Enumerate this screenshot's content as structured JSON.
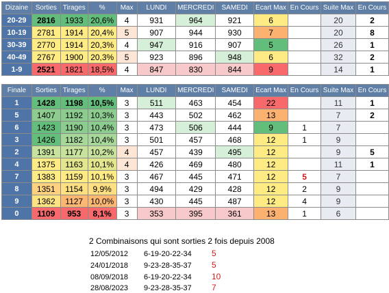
{
  "table1": {
    "headers": [
      "Dizaine",
      "Sorties",
      "Tirages",
      "%",
      "Max",
      "LUNDI",
      "MERCREDI",
      "SAMEDI",
      "Ecart Max",
      "En Cours",
      "Suite Max",
      "En Cours"
    ],
    "rows": [
      {
        "label": "20-29",
        "sorties": "2816",
        "tirages": "1933",
        "pct": "20,6%",
        "max": "4",
        "lundi": "931",
        "mercredi": "964",
        "samedi": "921",
        "ecart": "6",
        "encours": "",
        "suite": "20",
        "encours2": "2"
      },
      {
        "label": "10-19",
        "sorties": "2781",
        "tirages": "1914",
        "pct": "20,4%",
        "max": "5",
        "lundi": "907",
        "mercredi": "944",
        "samedi": "930",
        "ecart": "7",
        "encours": "",
        "suite": "20",
        "encours2": "8"
      },
      {
        "label": "30-39",
        "sorties": "2770",
        "tirages": "1914",
        "pct": "20,3%",
        "max": "4",
        "lundi": "947",
        "mercredi": "916",
        "samedi": "907",
        "ecart": "5",
        "encours": "",
        "suite": "26",
        "encours2": "1"
      },
      {
        "label": "40-49",
        "sorties": "2767",
        "tirages": "1900",
        "pct": "20,3%",
        "max": "5",
        "lundi": "923",
        "mercredi": "896",
        "samedi": "948",
        "ecart": "6",
        "encours": "",
        "suite": "32",
        "encours2": "2"
      },
      {
        "label": "1-9",
        "sorties": "2521",
        "tirages": "1821",
        "pct": "18,5%",
        "max": "4",
        "lundi": "847",
        "mercredi": "830",
        "samedi": "844",
        "ecart": "9",
        "encours": "",
        "suite": "14",
        "encours2": "1"
      }
    ]
  },
  "table2": {
    "headers": [
      "Finale",
      "Sorties",
      "Tirages",
      "%",
      "Max",
      "LUNDI",
      "MERCREDI",
      "SAMEDI",
      "Ecart Max",
      "En Cours",
      "Suite Max",
      "En Cours"
    ],
    "rows": [
      {
        "label": "1",
        "sorties": "1428",
        "tirages": "1198",
        "pct": "10,5%",
        "max": "3",
        "lundi": "511",
        "mercredi": "463",
        "samedi": "454",
        "ecart": "22",
        "encours": "",
        "suite": "11",
        "encours2": "1"
      },
      {
        "label": "5",
        "sorties": "1407",
        "tirages": "1192",
        "pct": "10,3%",
        "max": "3",
        "lundi": "443",
        "mercredi": "502",
        "samedi": "462",
        "ecart": "13",
        "encours": "",
        "suite": "7",
        "encours2": "2"
      },
      {
        "label": "6",
        "sorties": "1423",
        "tirages": "1190",
        "pct": "10,4%",
        "max": "3",
        "lundi": "473",
        "mercredi": "506",
        "samedi": "444",
        "ecart": "9",
        "encours": "1",
        "suite": "7",
        "encours2": ""
      },
      {
        "label": "3",
        "sorties": "1426",
        "tirages": "1182",
        "pct": "10,4%",
        "max": "3",
        "lundi": "501",
        "mercredi": "457",
        "samedi": "468",
        "ecart": "12",
        "encours": "1",
        "suite": "9",
        "encours2": ""
      },
      {
        "label": "2",
        "sorties": "1391",
        "tirages": "1177",
        "pct": "10,2%",
        "max": "4",
        "lundi": "457",
        "mercredi": "439",
        "samedi": "495",
        "ecart": "12",
        "encours": "",
        "suite": "9",
        "encours2": "5"
      },
      {
        "label": "4",
        "sorties": "1375",
        "tirages": "1163",
        "pct": "10,1%",
        "max": "4",
        "lundi": "426",
        "mercredi": "469",
        "samedi": "480",
        "ecart": "12",
        "encours": "",
        "suite": "11",
        "encours2": "1"
      },
      {
        "label": "7",
        "sorties": "1383",
        "tirages": "1159",
        "pct": "10,1%",
        "max": "3",
        "lundi": "467",
        "mercredi": "445",
        "samedi": "471",
        "ecart": "12",
        "encours": "5",
        "suite": "7",
        "encours2": ""
      },
      {
        "label": "8",
        "sorties": "1351",
        "tirages": "1154",
        "pct": "9,9%",
        "max": "3",
        "lundi": "494",
        "mercredi": "429",
        "samedi": "428",
        "ecart": "12",
        "encours": "2",
        "suite": "9",
        "encours2": ""
      },
      {
        "label": "9",
        "sorties": "1362",
        "tirages": "1127",
        "pct": "10,0%",
        "max": "3",
        "lundi": "430",
        "mercredi": "445",
        "samedi": "487",
        "ecart": "12",
        "encours": "4",
        "suite": "9",
        "encours2": ""
      },
      {
        "label": "0",
        "sorties": "1109",
        "tirages": "953",
        "pct": "8,1%",
        "max": "3",
        "lundi": "353",
        "mercredi": "395",
        "samedi": "361",
        "ecart": "13",
        "encours": "1",
        "suite": "6",
        "encours2": ""
      }
    ]
  },
  "note": "2 Combinaisons qui sont sorties 2 fois depuis 2008",
  "combinations": [
    {
      "date": "12/05/2012",
      "numbers": "6-19-20-22-34",
      "count": "5"
    },
    {
      "date": "24/01/2018",
      "numbers": "9-23-28-35-37",
      "count": "5"
    },
    {
      "date": "08/09/2018",
      "numbers": "6-19-20-22-34",
      "count": "10"
    },
    {
      "date": "28/08/2023",
      "numbers": "9-23-28-35-37",
      "count": "7"
    }
  ],
  "colors": {
    "header_bg": "#5f7fa6",
    "row_label_bg": "#4f74a8",
    "green_strong": "#63be7b",
    "green_light": "#d6efd8",
    "yellow": "#ffeb84",
    "orange": "#fbb170",
    "red": "#f8696b",
    "pink_light": "#f8c9ca",
    "suite_bg": "#e8ecf2",
    "encours_red": "#d11b1b"
  }
}
